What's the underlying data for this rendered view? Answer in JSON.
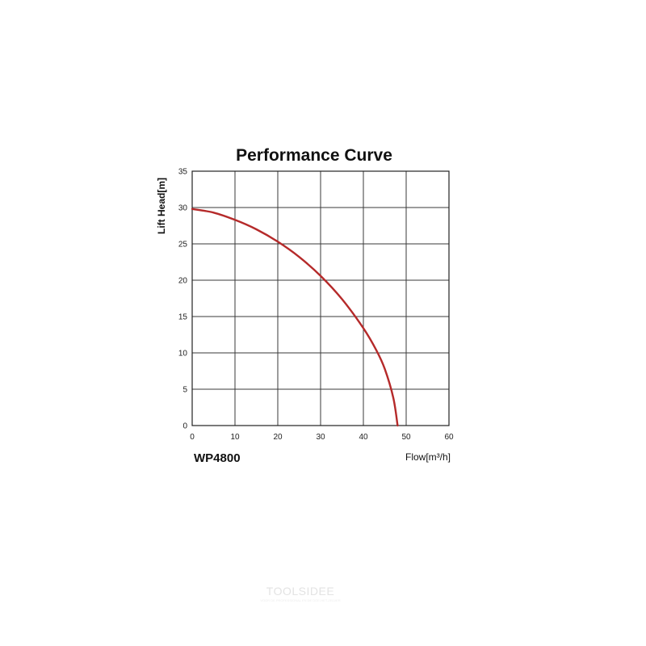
{
  "chart_data": {
    "type": "line",
    "title": "Performance Curve",
    "xlabel": "Flow[m³/h]",
    "ylabel": "Lift Head[m]",
    "model_label": "WP4800",
    "xlim": [
      0,
      60
    ],
    "ylim": [
      0,
      35
    ],
    "x_ticks": [
      "0",
      "10",
      "20",
      "30",
      "40",
      "50",
      "60"
    ],
    "y_ticks": [
      "0",
      "5",
      "10",
      "15",
      "20",
      "25",
      "30",
      "35"
    ],
    "grid": true,
    "series": [
      {
        "color": "#b52a2a",
        "points": [
          [
            0,
            29.8
          ],
          [
            5,
            29.3
          ],
          [
            10,
            28.3
          ],
          [
            15,
            27.0
          ],
          [
            20,
            25.3
          ],
          [
            25,
            23.2
          ],
          [
            30,
            20.6
          ],
          [
            35,
            17.4
          ],
          [
            40,
            13.4
          ],
          [
            43,
            10.4
          ],
          [
            45,
            7.8
          ],
          [
            47,
            3.8
          ],
          [
            48,
            0
          ]
        ]
      }
    ]
  },
  "watermark": {
    "text": "TOOLSIDEE",
    "subtext": "VOOR DE PROFESSIONAL EN DE DOE-HET-ZELVER"
  }
}
